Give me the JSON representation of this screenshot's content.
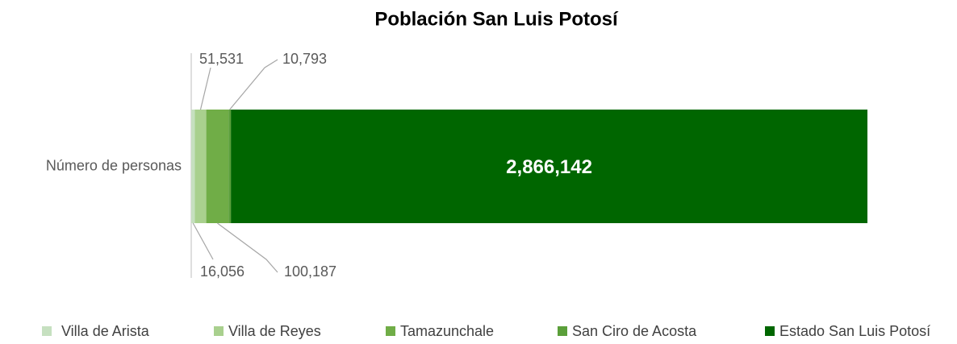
{
  "chart_data": {
    "type": "stacked-bar-horizontal",
    "title": "Población San Luis Potosí",
    "categories": [
      "Número de personas"
    ],
    "series": [
      {
        "name": "Villa de Arista",
        "color": "#c6e0c0",
        "values": [
          16056
        ],
        "value_labels": [
          "16,056"
        ]
      },
      {
        "name": "Villa de Reyes",
        "color": "#a9d08e",
        "values": [
          51531
        ],
        "value_labels": [
          "51,531"
        ]
      },
      {
        "name": "Tamazunchale",
        "color": "#70ad47",
        "values": [
          100187
        ],
        "value_labels": [
          "100,187"
        ]
      },
      {
        "name": "San Ciro de Acosta",
        "color": "#5b9f3a",
        "values": [
          10793
        ],
        "value_labels": [
          "10,793"
        ]
      },
      {
        "name": "Estado San Luis Potosí",
        "color": "#006600",
        "values": [
          2866142
        ],
        "value_labels": [
          "2,866,142"
        ]
      }
    ],
    "legend": "bottom"
  }
}
